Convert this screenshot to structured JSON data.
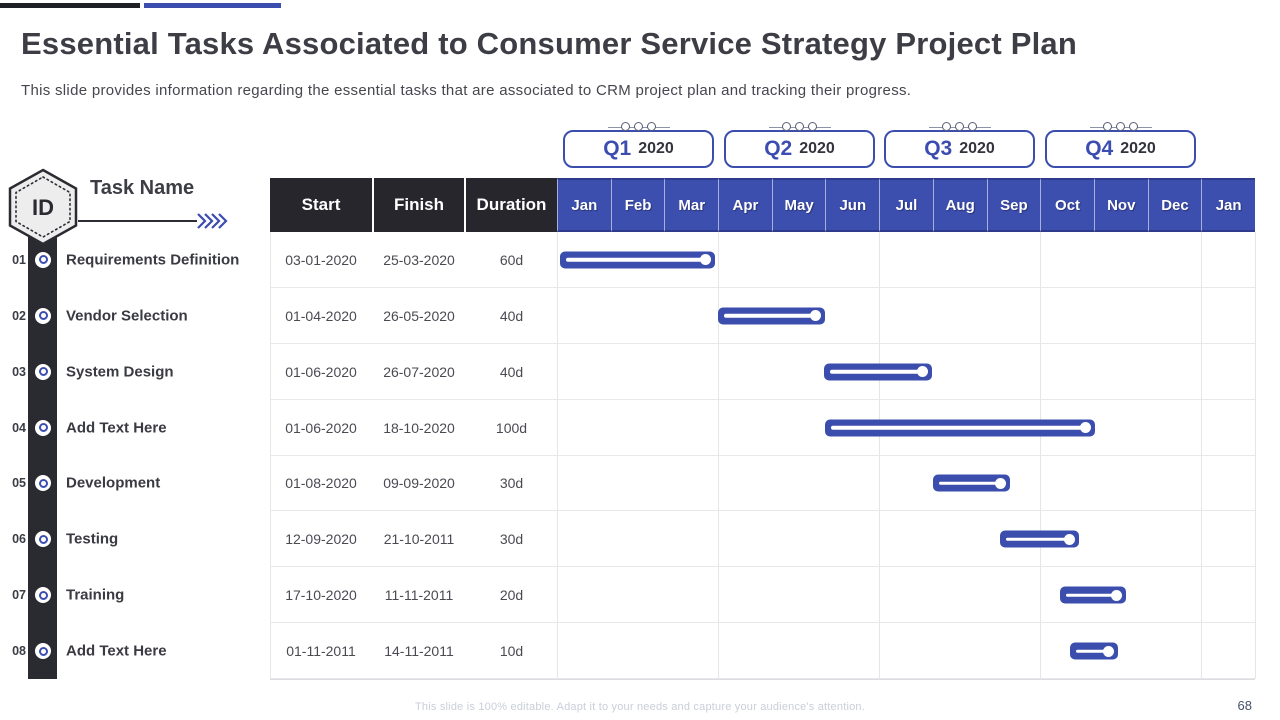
{
  "slide": {
    "title": "Essential Tasks Associated to Consumer Service Strategy Project Plan",
    "subtitle": "This slide provides information regarding the essential tasks that are associated to CRM project plan and tracking their progress.",
    "footer_note": "This slide is 100% editable. Adapt it to your needs and capture your audience's attention.",
    "page_number": "68"
  },
  "legend": {
    "id_badge": "ID",
    "task_name_label": "Task Name"
  },
  "quarters": [
    {
      "label": "Q1",
      "year": "2020"
    },
    {
      "label": "Q2",
      "year": "2020"
    },
    {
      "label": "Q3",
      "year": "2020"
    },
    {
      "label": "Q4",
      "year": "2020"
    }
  ],
  "table": {
    "columns": [
      "Start",
      "Finish",
      "Duration"
    ],
    "months": [
      "Jan",
      "Feb",
      "Mar",
      "Apr",
      "May",
      "Jun",
      "Jul",
      "Aug",
      "Sep",
      "Oct",
      "Nov",
      "Dec",
      "Jan"
    ]
  },
  "chart_data": {
    "type": "bar",
    "subtype": "gantt",
    "title": "Consumer Service Strategy Project Plan — task timeline",
    "x_axis": {
      "unit": "month",
      "labels": [
        "Jan",
        "Feb",
        "Mar",
        "Apr",
        "May",
        "Jun",
        "Jul",
        "Aug",
        "Sep",
        "Oct",
        "Nov",
        "Dec",
        "Jan"
      ],
      "quarter_groups": [
        "Q1 2020",
        "Q2 2020",
        "Q3 2020",
        "Q4 2020"
      ],
      "grid": "quarter-boundaries"
    },
    "tasks": [
      {
        "id": "01",
        "name": "Requirements Definition",
        "start": "03-01-2020",
        "finish": "25-03-2020",
        "duration": "60d",
        "bar_start_month": 0.05,
        "bar_end_month": 2.95
      },
      {
        "id": "02",
        "name": "Vendor Selection",
        "start": "01-04-2020",
        "finish": "26-05-2020",
        "duration": "40d",
        "bar_start_month": 3.0,
        "bar_end_month": 5.0
      },
      {
        "id": "03",
        "name": "System Design",
        "start": "01-06-2020",
        "finish": "26-07-2020",
        "duration": "40d",
        "bar_start_month": 4.97,
        "bar_end_month": 6.98
      },
      {
        "id": "04",
        "name": "Add Text Here",
        "start": "01-06-2020",
        "finish": "18-10-2020",
        "duration": "100d",
        "bar_start_month": 4.99,
        "bar_end_month": 10.02
      },
      {
        "id": "05",
        "name": "Development",
        "start": "01-08-2020",
        "finish": "09-09-2020",
        "duration": "30d",
        "bar_start_month": 7.0,
        "bar_end_month": 8.44
      },
      {
        "id": "06",
        "name": "Testing",
        "start": "12-09-2020",
        "finish": "21-10-2011",
        "duration": "30d",
        "bar_start_month": 8.25,
        "bar_end_month": 9.72
      },
      {
        "id": "07",
        "name": "Training",
        "start": "17-10-2020",
        "finish": "11-11-2011",
        "duration": "20d",
        "bar_start_month": 9.37,
        "bar_end_month": 10.6
      },
      {
        "id": "08",
        "name": "Add Text Here",
        "start": "01-11-2011",
        "finish": "14-11-2011",
        "duration": "10d",
        "bar_start_month": 9.55,
        "bar_end_month": 10.45
      }
    ]
  },
  "colors": {
    "accent_blue": "#3c4ead",
    "header_dark": "#26262c",
    "title_text": "#3d3d45",
    "grid_line": "#e6e6ea",
    "footer_text": "#c9ced9"
  }
}
